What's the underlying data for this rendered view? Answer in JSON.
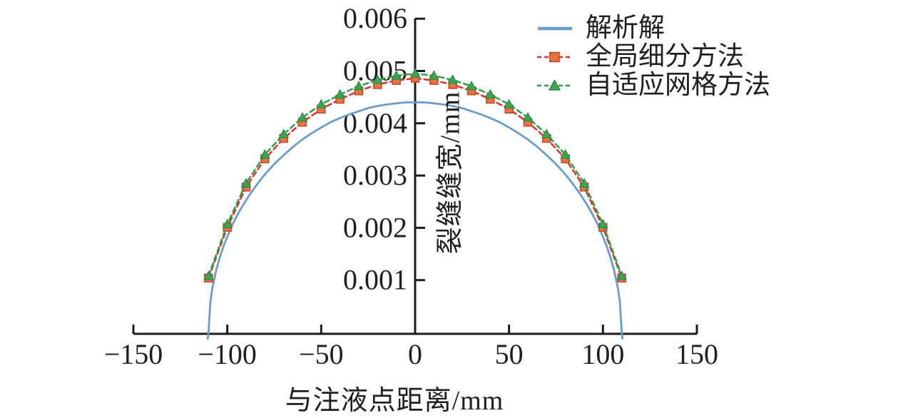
{
  "figure": {
    "background": "#ffffff",
    "axis_color": "#1b1b1b",
    "text_color": "#1f1f1f"
  },
  "legend": {
    "items": [
      {
        "label": "解析解",
        "line_color": "#689dcb",
        "line_style": "solid",
        "marker": "none"
      },
      {
        "label": "全局细分方法",
        "line_color": "#df3028",
        "line_style": "dashed",
        "marker": "square",
        "marker_fill": "#e5743e",
        "marker_edge": "#c8402a"
      },
      {
        "label": "自适应网格方法",
        "line_color": "#2f9e49",
        "line_style": "dashed",
        "marker": "triangle",
        "marker_fill": "#3da456",
        "marker_edge": "#2b8c3f"
      }
    ]
  },
  "chart_data": {
    "type": "line",
    "title": "",
    "xlabel": "与注液点距离/mm",
    "ylabel": "裂缝缝宽/mm",
    "xlim": [
      -150,
      150
    ],
    "ylim": [
      0,
      0.006
    ],
    "x_ticks": [
      -150,
      -100,
      -50,
      0,
      50,
      100,
      150
    ],
    "y_ticks": [
      0.001,
      0.002,
      0.003,
      0.004,
      0.005,
      0.006
    ],
    "grid": false,
    "legend_position": "top-right",
    "series": [
      {
        "name": "解析解",
        "style": "solid",
        "color": "#689dcb",
        "marker": "none",
        "x": [
          -110.4,
          -110,
          -109,
          -108,
          -106,
          -104,
          -102,
          -100,
          -97,
          -94,
          -91,
          -88,
          -84,
          -80,
          -75,
          -70,
          -65,
          -60,
          -55,
          -50,
          -45,
          -40,
          -35,
          -30,
          -25,
          -20,
          -15,
          -10,
          -5,
          0,
          5,
          10,
          15,
          20,
          25,
          30,
          35,
          40,
          45,
          50,
          55,
          60,
          65,
          70,
          75,
          80,
          84,
          88,
          91,
          94,
          97,
          100,
          102,
          104,
          106,
          108,
          109,
          110,
          110.4
        ],
        "w": [
          -0.00012,
          0,
          0.00059,
          0.00084,
          0.00118,
          0.00143,
          0.00165,
          0.00183,
          0.00208,
          0.00229,
          0.00247,
          0.00264,
          0.00284,
          0.00302,
          0.00322,
          0.00339,
          0.00355,
          0.00369,
          0.00381,
          0.00392,
          0.00402,
          0.0041,
          0.00417,
          0.00423,
          0.00429,
          0.00433,
          0.00436,
          0.00438,
          0.0044,
          0.0044,
          0.0044,
          0.00438,
          0.00436,
          0.00433,
          0.00429,
          0.00423,
          0.00417,
          0.0041,
          0.00402,
          0.00392,
          0.00381,
          0.00369,
          0.00355,
          0.00339,
          0.00322,
          0.00302,
          0.00284,
          0.00264,
          0.00247,
          0.00229,
          0.00208,
          0.00183,
          0.00165,
          0.00143,
          0.00118,
          0.00084,
          0.00059,
          0,
          -0.00012
        ]
      },
      {
        "name": "全局细分方法",
        "style": "dashed",
        "color": "#df3028",
        "marker": "square",
        "marker_fill": "#e5743e",
        "marker_edge": "#c8402a",
        "x": [
          -110,
          -100,
          -90,
          -80,
          -70,
          -60,
          -50,
          -40,
          -30,
          -20,
          -10,
          0,
          10,
          20,
          30,
          40,
          50,
          60,
          70,
          80,
          90,
          100,
          110
        ],
        "w": [
          0.00104,
          0.00201,
          0.00278,
          0.00332,
          0.00371,
          0.00402,
          0.00427,
          0.00446,
          0.00462,
          0.00474,
          0.00482,
          0.00486,
          0.00482,
          0.00474,
          0.00462,
          0.00446,
          0.00427,
          0.00402,
          0.00371,
          0.00332,
          0.00278,
          0.00201,
          0.00104
        ]
      },
      {
        "name": "自适应网格方法",
        "style": "dashed",
        "color": "#2f9e49",
        "marker": "triangle",
        "marker_fill": "#3da456",
        "marker_edge": "#2b8c3f",
        "x": [
          -110,
          -100,
          -90,
          -80,
          -70,
          -60,
          -50,
          -40,
          -30,
          -20,
          -10,
          0,
          10,
          20,
          30,
          40,
          50,
          60,
          70,
          80,
          90,
          100,
          110
        ],
        "w": [
          0.00108,
          0.00207,
          0.00285,
          0.0034,
          0.00379,
          0.00411,
          0.00436,
          0.00455,
          0.00471,
          0.00483,
          0.00491,
          0.00495,
          0.00491,
          0.00483,
          0.00471,
          0.00455,
          0.00436,
          0.00411,
          0.00379,
          0.0034,
          0.00285,
          0.00207,
          0.00108
        ]
      }
    ]
  }
}
